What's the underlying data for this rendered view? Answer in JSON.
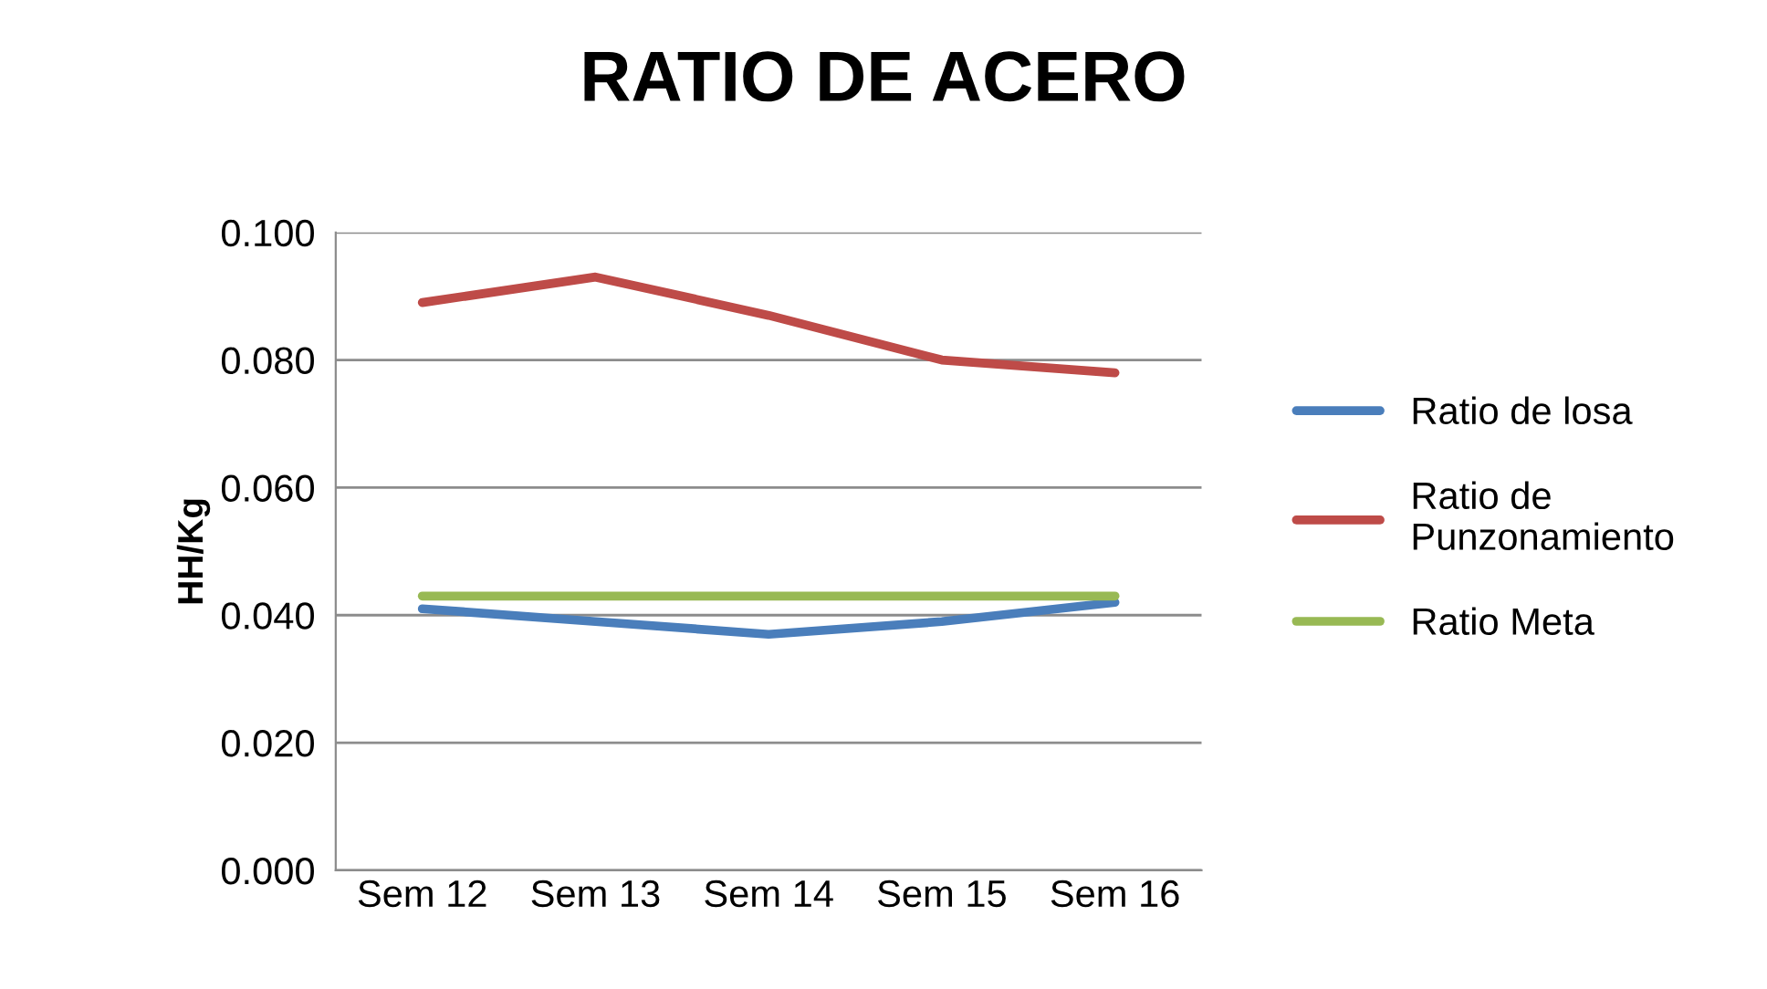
{
  "chart_data": {
    "type": "line",
    "title": "RATIO DE ACERO",
    "ylabel": "HH/Kg",
    "categories": [
      "Sem 12",
      "Sem 13",
      "Sem 14",
      "Sem 15",
      "Sem 16"
    ],
    "series": [
      {
        "name": "Ratio de losa",
        "color": "#4a7ebb",
        "values": [
          0.041,
          0.039,
          0.037,
          0.039,
          0.042
        ]
      },
      {
        "name": "Ratio de\nPunzonamiento",
        "color": "#be4b48",
        "values": [
          0.089,
          0.093,
          0.087,
          0.08,
          0.078
        ]
      },
      {
        "name": "Ratio Meta",
        "color": "#98b954",
        "values": [
          0.043,
          0.043,
          0.043,
          0.043,
          0.043
        ]
      }
    ],
    "ylim": [
      0,
      0.1
    ],
    "yticks": [
      {
        "value": 0,
        "label": "0.000"
      },
      {
        "value": 0.02,
        "label": "0.020"
      },
      {
        "value": 0.04,
        "label": "0.040"
      },
      {
        "value": 0.06,
        "label": "0.060"
      },
      {
        "value": 0.08,
        "label": "0.080"
      },
      {
        "value": 0.1,
        "label": "0.100"
      }
    ],
    "grid": "y",
    "legend": "right",
    "marker": "none",
    "line_style": "solid"
  }
}
